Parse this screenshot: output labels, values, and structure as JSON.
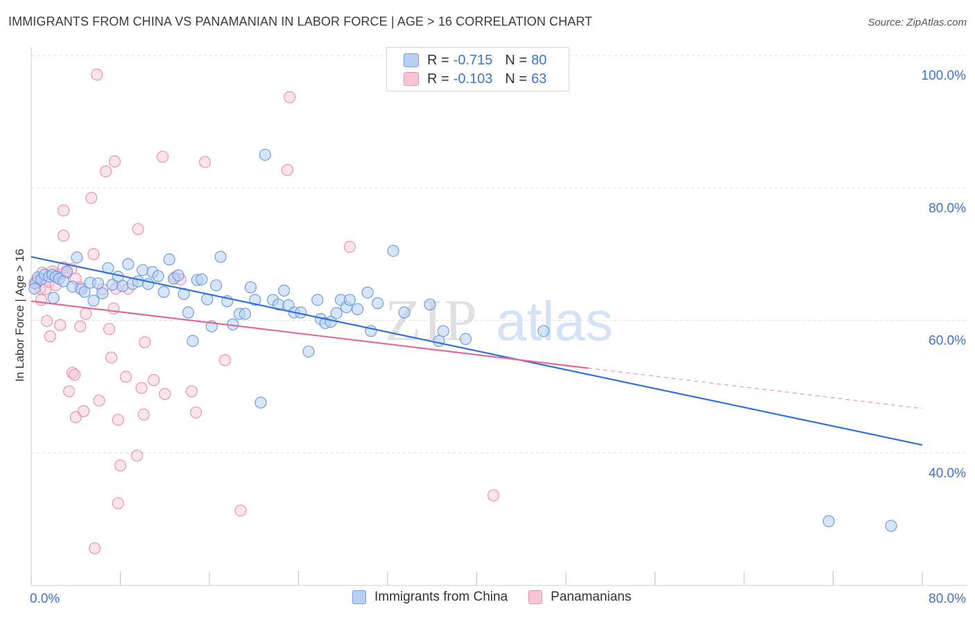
{
  "title": "IMMIGRANTS FROM CHINA VS PANAMANIAN IN LABOR FORCE | AGE > 16 CORRELATION CHART",
  "source": "Source: ZipAtlas.com",
  "watermark": {
    "zip": "ZIP",
    "atlas": "atlas"
  },
  "colors": {
    "china_fill": "#b7d0f3",
    "china_stroke": "#6f9ce3",
    "china_line": "#2f72d6",
    "pan_fill": "#f7c6d6",
    "pan_stroke": "#ec8fae",
    "pan_line": "#e26b96",
    "axis_label": "#3a73d0",
    "grid": "#dcdcdc"
  },
  "legend": {
    "r_label": "R =",
    "n_label": "N =",
    "rows": [
      {
        "r": "-0.715",
        "n": "80"
      },
      {
        "r": "-0.103",
        "n": "63"
      }
    ]
  },
  "bottom_legend": [
    "Immigrants from China",
    "Panamanians"
  ],
  "chart_data": {
    "type": "scatter",
    "title": "IMMIGRANTS FROM CHINA VS PANAMANIAN IN LABOR FORCE | AGE > 16 CORRELATION CHART",
    "xlabel": "",
    "ylabel": "In Labor Force | Age > 16",
    "xlim": [
      0,
      80
    ],
    "ylim": [
      20,
      100
    ],
    "x_tick_labels": [
      "0.0%",
      "80.0%"
    ],
    "y_ticks": [
      40,
      60,
      80,
      100
    ],
    "y_tick_labels": [
      "40.0%",
      "60.0%",
      "80.0%",
      "100.0%"
    ],
    "grid": true,
    "series": [
      {
        "name": "Immigrants from China",
        "r": -0.715,
        "n": 80,
        "trend": {
          "x": [
            0,
            80
          ],
          "y": [
            69.6,
            41.2
          ]
        },
        "points": [
          [
            0.4,
            65.6
          ],
          [
            0.6,
            66.5
          ],
          [
            0.9,
            66.2
          ],
          [
            1.2,
            66.9
          ],
          [
            1.6,
            66.6
          ],
          [
            1.9,
            66.9
          ],
          [
            2.2,
            66.6
          ],
          [
            2.5,
            66.3
          ],
          [
            2.9,
            65.9
          ],
          [
            3.2,
            67.4
          ],
          [
            3.7,
            65.1
          ],
          [
            4.1,
            69.5
          ],
          [
            4.5,
            64.7
          ],
          [
            4.8,
            64.3
          ],
          [
            5.3,
            65.7
          ],
          [
            5.6,
            63.0
          ],
          [
            6.0,
            65.6
          ],
          [
            6.4,
            64.1
          ],
          [
            6.9,
            67.9
          ],
          [
            7.3,
            65.4
          ],
          [
            7.8,
            66.6
          ],
          [
            8.2,
            65.2
          ],
          [
            8.7,
            68.5
          ],
          [
            9.1,
            65.5
          ],
          [
            9.6,
            65.9
          ],
          [
            10.0,
            67.6
          ],
          [
            10.5,
            65.5
          ],
          [
            10.9,
            67.3
          ],
          [
            11.4,
            66.7
          ],
          [
            11.9,
            64.3
          ],
          [
            12.4,
            69.2
          ],
          [
            12.8,
            66.3
          ],
          [
            13.2,
            66.8
          ],
          [
            13.7,
            64.0
          ],
          [
            14.1,
            61.2
          ],
          [
            14.5,
            56.9
          ],
          [
            14.9,
            66.1
          ],
          [
            15.3,
            66.2
          ],
          [
            15.8,
            63.2
          ],
          [
            16.2,
            59.1
          ],
          [
            16.6,
            65.3
          ],
          [
            17.0,
            69.6
          ],
          [
            17.6,
            62.9
          ],
          [
            18.1,
            59.4
          ],
          [
            18.7,
            61.0
          ],
          [
            19.2,
            61.0
          ],
          [
            19.7,
            65.0
          ],
          [
            20.1,
            63.1
          ],
          [
            20.6,
            47.6
          ],
          [
            21.0,
            85.0
          ],
          [
            21.7,
            63.1
          ],
          [
            22.2,
            62.4
          ],
          [
            22.7,
            64.5
          ],
          [
            23.1,
            62.3
          ],
          [
            23.6,
            61.2
          ],
          [
            24.2,
            61.2
          ],
          [
            24.9,
            55.3
          ],
          [
            25.7,
            63.1
          ],
          [
            26.0,
            60.2
          ],
          [
            26.4,
            59.6
          ],
          [
            26.9,
            59.8
          ],
          [
            27.4,
            61.1
          ],
          [
            27.8,
            63.1
          ],
          [
            28.3,
            62.0
          ],
          [
            28.6,
            63.1
          ],
          [
            29.3,
            61.7
          ],
          [
            30.2,
            64.2
          ],
          [
            30.5,
            58.4
          ],
          [
            31.1,
            62.6
          ],
          [
            32.5,
            70.5
          ],
          [
            33.5,
            61.2
          ],
          [
            35.8,
            62.4
          ],
          [
            36.6,
            56.9
          ],
          [
            37.0,
            58.4
          ],
          [
            39.0,
            57.2
          ],
          [
            46.0,
            58.4
          ],
          [
            71.6,
            29.7
          ],
          [
            77.2,
            29.0
          ],
          [
            0.3,
            64.8
          ],
          [
            2.0,
            63.4
          ]
        ]
      },
      {
        "name": "Panamanians",
        "r": -0.103,
        "n": 63,
        "trend": {
          "x": [
            0,
            50
          ],
          "y": [
            62.9,
            52.8
          ]
        },
        "trend_dashed": {
          "x": [
            50,
            80
          ],
          "y": [
            52.8,
            46.7
          ]
        },
        "points": [
          [
            0.3,
            65.6
          ],
          [
            0.5,
            66.0
          ],
          [
            0.8,
            64.8
          ],
          [
            1.0,
            67.2
          ],
          [
            1.3,
            64.7
          ],
          [
            1.6,
            65.8
          ],
          [
            1.9,
            67.4
          ],
          [
            2.2,
            65.3
          ],
          [
            2.5,
            66.9
          ],
          [
            2.9,
            68.0
          ],
          [
            3.2,
            67.2
          ],
          [
            3.6,
            67.8
          ],
          [
            4.0,
            66.3
          ],
          [
            4.4,
            65.0
          ],
          [
            0.9,
            63.1
          ],
          [
            1.4,
            59.9
          ],
          [
            1.7,
            57.6
          ],
          [
            2.6,
            59.3
          ],
          [
            2.9,
            76.6
          ],
          [
            2.9,
            72.8
          ],
          [
            3.4,
            49.3
          ],
          [
            3.7,
            52.1
          ],
          [
            3.9,
            51.8
          ],
          [
            4.0,
            45.4
          ],
          [
            4.4,
            59.1
          ],
          [
            4.7,
            46.3
          ],
          [
            4.9,
            61.0
          ],
          [
            5.4,
            78.5
          ],
          [
            5.6,
            70.0
          ],
          [
            5.7,
            25.6
          ],
          [
            5.9,
            97.1
          ],
          [
            6.1,
            47.9
          ],
          [
            6.4,
            64.7
          ],
          [
            6.7,
            82.5
          ],
          [
            7.0,
            58.7
          ],
          [
            7.2,
            54.4
          ],
          [
            7.4,
            61.8
          ],
          [
            7.5,
            84.0
          ],
          [
            7.6,
            64.8
          ],
          [
            7.8,
            45.0
          ],
          [
            7.8,
            32.4
          ],
          [
            8.0,
            38.1
          ],
          [
            8.5,
            51.5
          ],
          [
            8.7,
            64.8
          ],
          [
            9.5,
            39.6
          ],
          [
            9.6,
            73.8
          ],
          [
            9.9,
            49.8
          ],
          [
            10.1,
            45.8
          ],
          [
            10.2,
            56.7
          ],
          [
            11.0,
            51.0
          ],
          [
            11.8,
            84.7
          ],
          [
            12.0,
            48.9
          ],
          [
            12.9,
            66.5
          ],
          [
            13.4,
            66.2
          ],
          [
            14.4,
            49.3
          ],
          [
            14.8,
            46.1
          ],
          [
            15.6,
            83.9
          ],
          [
            17.4,
            54.0
          ],
          [
            18.8,
            31.3
          ],
          [
            23.2,
            93.7
          ],
          [
            23.0,
            82.7
          ],
          [
            28.6,
            71.1
          ],
          [
            41.5,
            33.6
          ]
        ]
      }
    ]
  }
}
